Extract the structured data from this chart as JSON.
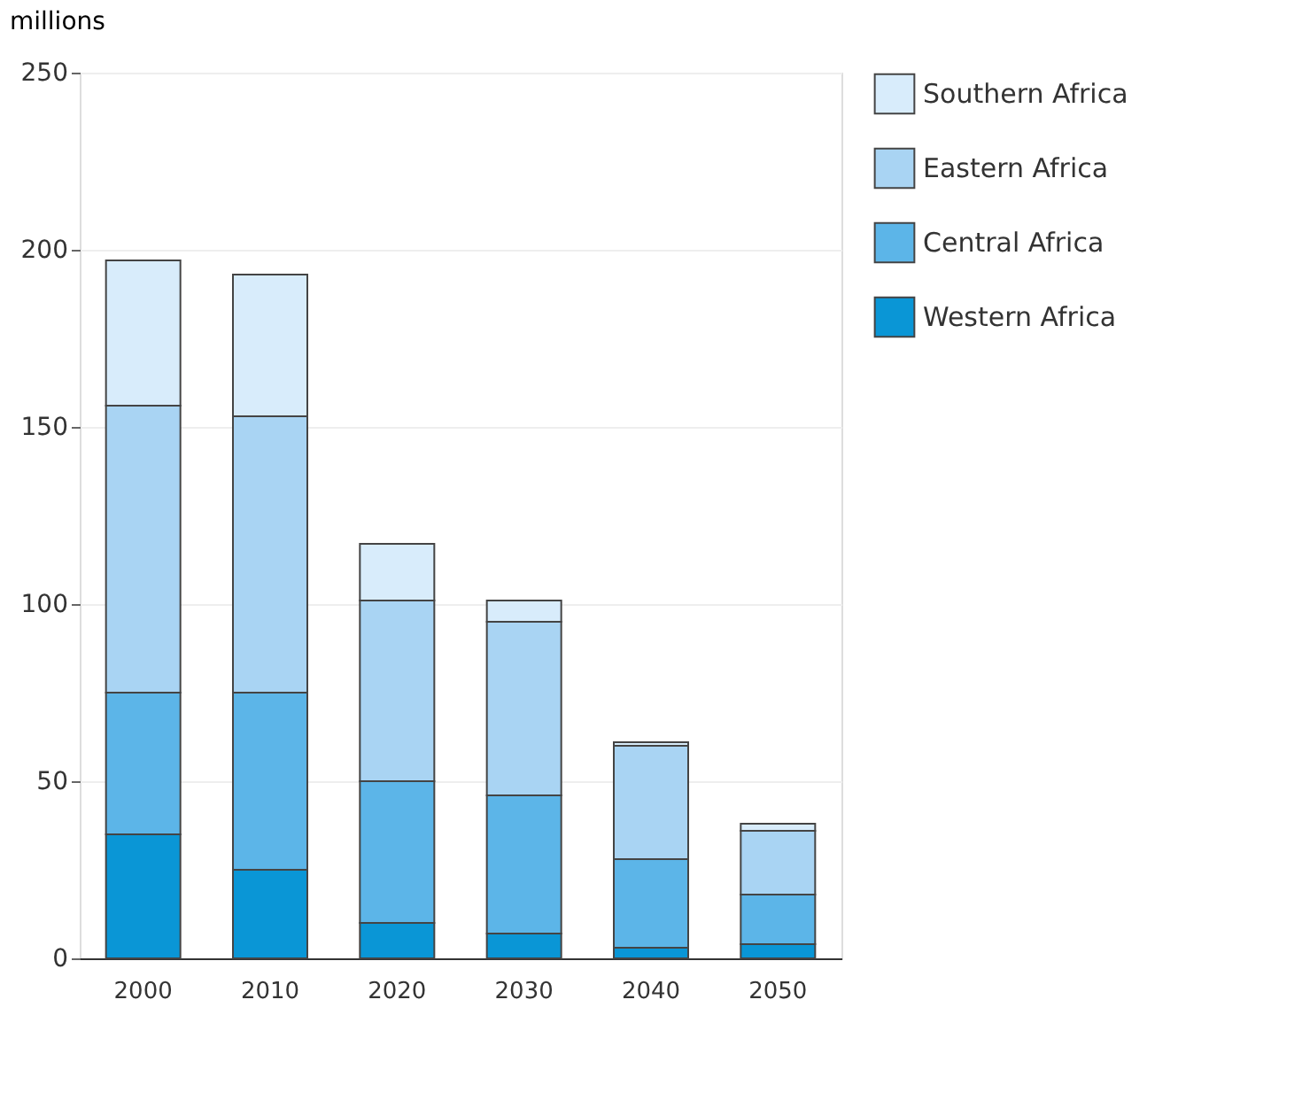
{
  "chart_data": {
    "type": "bar",
    "stacked": true,
    "ylabel": "millions",
    "categories": [
      "2000",
      "2010",
      "2020",
      "2030",
      "2040",
      "2050"
    ],
    "series": [
      {
        "name": "Western Africa",
        "color": "#0a96d6",
        "values": [
          35,
          25,
          10,
          7,
          3,
          4
        ]
      },
      {
        "name": "Central Africa",
        "color": "#5cb5e8",
        "values": [
          40,
          50,
          40,
          39,
          25,
          14
        ]
      },
      {
        "name": "Eastern Africa",
        "color": "#a9d4f3",
        "values": [
          81,
          78,
          51,
          49,
          32,
          18
        ]
      },
      {
        "name": "Southern Africa",
        "color": "#d8ecfb",
        "values": [
          41,
          40,
          16,
          6,
          1,
          2
        ]
      }
    ],
    "ylim": [
      0,
      250
    ],
    "yticks": [
      0,
      50,
      100,
      150,
      200,
      250
    ],
    "grid": "y",
    "legend": "top right"
  }
}
